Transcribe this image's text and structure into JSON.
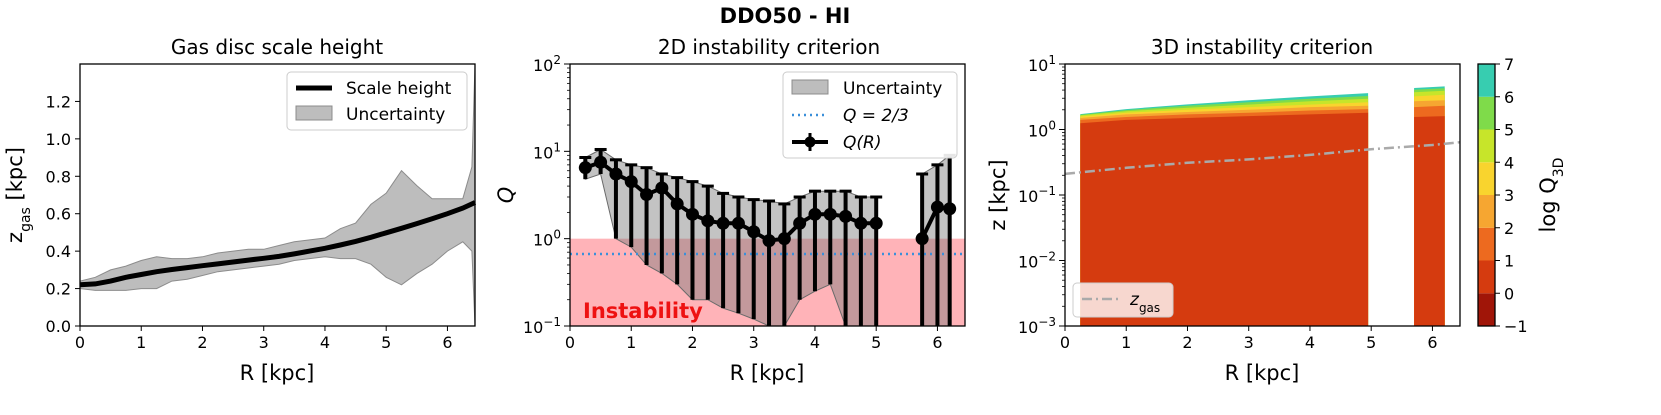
{
  "suptitle": "DDO50 - HI",
  "colors": {
    "band": "#bdbdbd",
    "band_edge": "#8c8c8c",
    "line": "#000000",
    "q_threshold": "#3a8fd9",
    "instability_fill": "#ffb3b8",
    "instability_text": "#ee1111",
    "zgas_line": "#aaaaaa"
  },
  "chart_data": [
    {
      "type": "line",
      "title": "Gas disc scale height",
      "xlabel": "R [kpc]",
      "ylabel_main": "z",
      "ylabel_sub": "gas",
      "ylabel_unit": " [kpc]",
      "xlim": [
        0,
        6.45
      ],
      "ylim": [
        0,
        1.4
      ],
      "xticks": [
        "0",
        "1",
        "2",
        "3",
        "4",
        "5",
        "6"
      ],
      "yticks": [
        "0.0",
        "0.2",
        "0.4",
        "0.6",
        "0.8",
        "1.0",
        "1.2"
      ],
      "legend": {
        "placement": "top-right",
        "items": [
          "Scale height",
          "Uncertainty"
        ]
      },
      "series": [
        {
          "name": "Scale height",
          "x": [
            0,
            0.25,
            0.5,
            0.75,
            1.0,
            1.25,
            1.5,
            1.75,
            2.0,
            2.25,
            2.5,
            2.75,
            3.0,
            3.25,
            3.5,
            3.75,
            4.0,
            4.25,
            4.5,
            4.75,
            5.0,
            5.25,
            5.5,
            5.75,
            6.0,
            6.25,
            6.45
          ],
          "y": [
            0.22,
            0.225,
            0.24,
            0.26,
            0.275,
            0.29,
            0.302,
            0.312,
            0.322,
            0.332,
            0.342,
            0.352,
            0.362,
            0.372,
            0.385,
            0.4,
            0.415,
            0.433,
            0.452,
            0.474,
            0.498,
            0.522,
            0.547,
            0.573,
            0.6,
            0.63,
            0.66
          ]
        }
      ],
      "band": {
        "name": "Uncertainty",
        "x": [
          0,
          0.25,
          0.5,
          0.75,
          1.0,
          1.25,
          1.5,
          1.75,
          2.0,
          2.25,
          2.5,
          2.75,
          3.0,
          3.25,
          3.5,
          3.75,
          4.0,
          4.25,
          4.5,
          4.75,
          5.0,
          5.25,
          5.5,
          5.75,
          6.0,
          6.25,
          6.4,
          6.45
        ],
        "low": [
          0.2,
          0.19,
          0.19,
          0.19,
          0.2,
          0.2,
          0.24,
          0.25,
          0.27,
          0.29,
          0.3,
          0.31,
          0.32,
          0.33,
          0.35,
          0.36,
          0.37,
          0.36,
          0.36,
          0.33,
          0.26,
          0.22,
          0.28,
          0.33,
          0.4,
          0.45,
          0.4,
          0.0
        ],
        "high": [
          0.24,
          0.26,
          0.3,
          0.32,
          0.35,
          0.37,
          0.36,
          0.36,
          0.37,
          0.39,
          0.4,
          0.41,
          0.41,
          0.43,
          0.45,
          0.46,
          0.47,
          0.52,
          0.55,
          0.65,
          0.71,
          0.83,
          0.75,
          0.68,
          0.68,
          0.68,
          0.85,
          1.4
        ]
      }
    },
    {
      "type": "errorbar",
      "title": "2D instability criterion",
      "xlabel": "R [kpc]",
      "ylabel": "Q",
      "yscale": "log",
      "xlim": [
        0,
        6.45
      ],
      "ylim_exp": [
        -1,
        2
      ],
      "xticks": [
        "0",
        "1",
        "2",
        "3",
        "4",
        "5",
        "6"
      ],
      "yticks": [
        {
          "base": "10",
          "exp": "−1"
        },
        {
          "base": "10",
          "exp": "0"
        },
        {
          "base": "10",
          "exp": "1"
        },
        {
          "base": "10",
          "exp": "2"
        }
      ],
      "legend": {
        "placement": "top-right",
        "items": [
          "Uncertainty",
          "Q = 2/3",
          "Q(R)"
        ]
      },
      "q_threshold": 0.6667,
      "instability_region": {
        "upper": 1.0,
        "label": "Instability"
      },
      "series": [
        {
          "name": "Q(R)",
          "segments": [
            {
              "x": [
                0.25,
                0.5,
                0.75,
                1.0,
                1.25,
                1.5,
                1.75,
                2.0,
                2.25,
                2.5,
                2.75,
                3.0,
                3.25,
                3.5,
                3.75,
                4.0,
                4.25,
                4.5,
                4.75,
                5.0
              ],
              "y": [
                6.5,
                7.5,
                5.5,
                4.5,
                3.2,
                3.8,
                2.5,
                1.9,
                1.6,
                1.5,
                1.5,
                1.2,
                0.95,
                1.0,
                1.5,
                1.9,
                1.9,
                1.8,
                1.5,
                1.5
              ],
              "ylow": [
                4.8,
                5.5,
                1.0,
                0.8,
                0.5,
                0.4,
                0.3,
                0.2,
                0.2,
                0.16,
                0.14,
                0.12,
                0.1,
                0.1,
                0.2,
                0.25,
                0.3,
                0.1,
                0.1,
                0.1
              ],
              "yhigh": [
                8.5,
                10.5,
                8.0,
                7.0,
                6.5,
                5.5,
                5.0,
                4.5,
                4.0,
                3.3,
                3.0,
                2.8,
                2.7,
                2.5,
                3.0,
                3.5,
                3.5,
                3.5,
                3.0,
                3.0
              ]
            },
            {
              "x": [
                5.75,
                6.0,
                6.2
              ],
              "y": [
                1.0,
                2.3,
                2.2
              ],
              "ylow": [
                0.1,
                0.1,
                0.1
              ],
              "yhigh": [
                5.5,
                7.0,
                9.0
              ]
            }
          ]
        }
      ]
    },
    {
      "type": "filled-contour",
      "title": "3D instability criterion",
      "xlabel": "R [kpc]",
      "ylabel": "z [kpc]",
      "yscale": "log",
      "xlim": [
        0,
        6.45
      ],
      "ylim_exp": [
        -3,
        1
      ],
      "xticks": [
        "0",
        "1",
        "2",
        "3",
        "4",
        "5",
        "6"
      ],
      "yticks": [
        {
          "base": "10",
          "exp": "−3"
        },
        {
          "base": "10",
          "exp": "−2"
        },
        {
          "base": "10",
          "exp": "−1"
        },
        {
          "base": "10",
          "exp": "0"
        },
        {
          "base": "10",
          "exp": "1"
        }
      ],
      "legend": {
        "placement": "lower-left",
        "items": [
          "z_gas"
        ]
      },
      "legend_label_main": "z",
      "legend_label_sub": "gas",
      "data_segments": [
        [
          0.25,
          4.95
        ],
        [
          5.7,
          6.2
        ]
      ],
      "z_gas": {
        "x": [
          0,
          1,
          2,
          3,
          4,
          5,
          6,
          6.45
        ],
        "y": [
          0.21,
          0.26,
          0.31,
          0.35,
          0.41,
          0.5,
          0.58,
          0.64
        ]
      },
      "level_tops": {
        "x": [
          0.25,
          1.0,
          2.0,
          3.0,
          4.0,
          4.95
        ],
        "x2": [
          5.7,
          6.2
        ],
        "levels": [
          {
            "range": "0–1",
            "top1": [
              1.25,
              1.4,
              1.5,
              1.6,
              1.7,
              1.8
            ],
            "top2": [
              1.55,
              1.6
            ]
          },
          {
            "range": "1–2",
            "top1": [
              1.4,
              1.55,
              1.7,
              1.8,
              1.95,
              2.05
            ],
            "top2": [
              2.2,
              2.3
            ]
          },
          {
            "range": "2–3",
            "top1": [
              1.5,
              1.7,
              1.85,
              2.0,
              2.2,
              2.3
            ],
            "top2": [
              2.7,
              2.8
            ]
          },
          {
            "range": "3–4",
            "top1": [
              1.58,
              1.8,
              2.0,
              2.2,
              2.4,
              2.6
            ],
            "top2": [
              3.2,
              3.4
            ]
          },
          {
            "range": "4–5",
            "top1": [
              1.64,
              1.9,
              2.15,
              2.4,
              2.7,
              2.95
            ],
            "top2": [
              3.7,
              3.9
            ]
          },
          {
            "range": "5–6",
            "top1": [
              1.68,
              1.98,
              2.3,
              2.6,
              2.95,
              3.25
            ],
            "top2": [
              4.05,
              4.25
            ]
          },
          {
            "range": "6–7",
            "top1": [
              1.72,
              2.05,
              2.42,
              2.8,
              3.2,
              3.6
            ],
            "top2": [
              4.3,
              4.55
            ]
          }
        ]
      },
      "colorbar": {
        "label_main": "log Q",
        "label_sub": "3D",
        "ticks": [
          "−1",
          "0",
          "1",
          "2",
          "3",
          "4",
          "5",
          "6",
          "7"
        ],
        "levels": [
          -1,
          0,
          1,
          2,
          3,
          4,
          5,
          6,
          7
        ],
        "colors": [
          "#a01508",
          "#d53b0f",
          "#ed6a1f",
          "#f6a631",
          "#f9d42e",
          "#c7e52a",
          "#7fdb4a",
          "#37cdb0"
        ]
      }
    }
  ]
}
